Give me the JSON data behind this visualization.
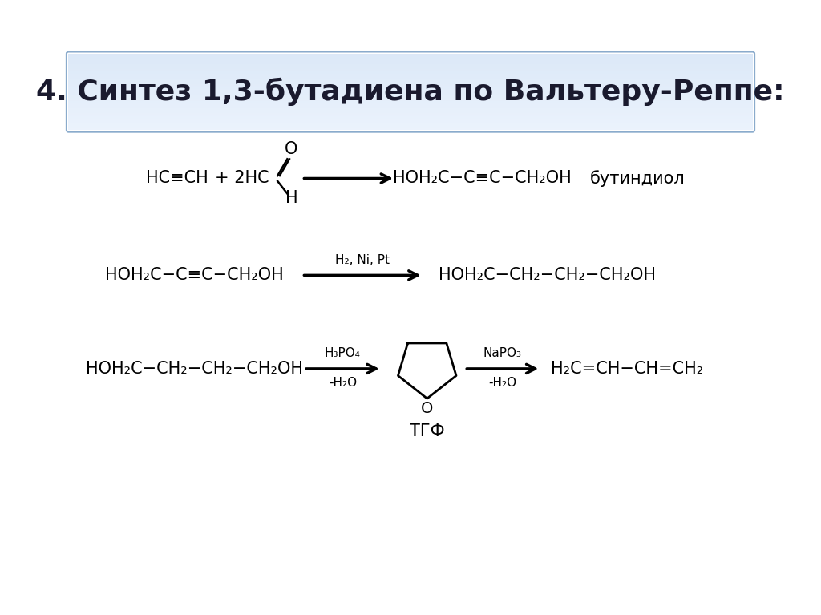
{
  "title": "4. Синтез 1,3-бутадиена по Вальтеру-Реппе:",
  "title_bg_top": "#dce8f8",
  "title_bg_bot": "#b8cfe8",
  "title_border_color": "#8aabcc",
  "bg_color": "#ffffff",
  "text_color": "#000000",
  "r1_acetylene": "HC≡CH + 2HC",
  "r1_product": "HOH₂C−C≡C−CH₂OH",
  "r1_label": "бутиндиол",
  "r2_left": "HOH₂C−C≡C−CH₂OH",
  "r2_arrow": "H₂, Ni, Pt",
  "r2_right": "HOH₂C−CH₂−CH₂−CH₂OH",
  "r3_left": "HOH₂C−CH₂−CH₂−CH₂OH",
  "r3_a1_top": "H₃PO₄",
  "r3_a1_bot": "-H₂O",
  "r3_thf": "ТГФ",
  "r3_a2_top": "NaPO₃",
  "r3_a2_bot": "-H₂O",
  "r3_right": "H₂C=CH−CH=CH₂"
}
